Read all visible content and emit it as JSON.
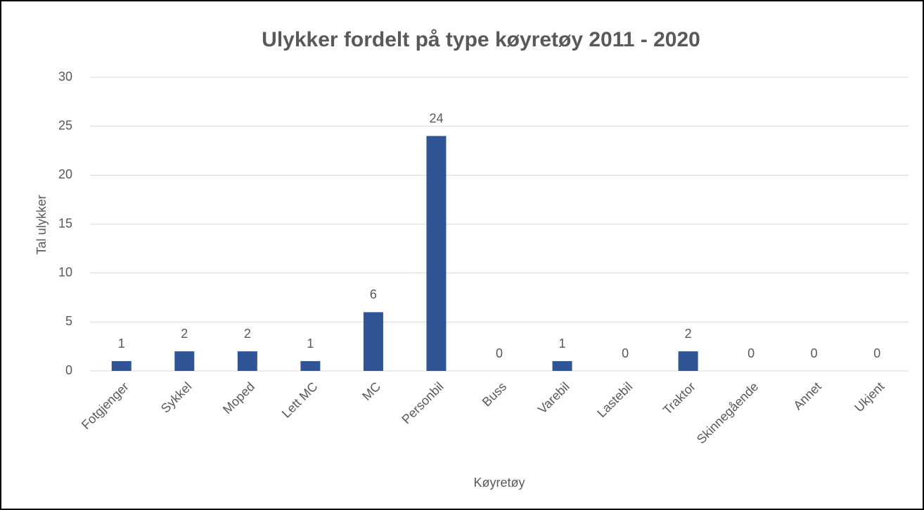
{
  "chart_data": {
    "type": "bar",
    "title": "Ulykker fordelt på type køyretøy  2011 - 2020",
    "x_label": "Køyretøy",
    "y_label": "Tal ulykker",
    "categories": [
      "Fotgjenger",
      "Sykkel",
      "Moped",
      "Lett MC",
      "MC",
      "Personbil",
      "Buss",
      "Varebil",
      "Lastebil",
      "Traktor",
      "Skinnegående",
      "Annet",
      "Ukjent"
    ],
    "values": [
      1,
      2,
      2,
      1,
      6,
      24,
      0,
      1,
      0,
      2,
      0,
      0,
      0
    ],
    "color": "#2f5597",
    "ylim": [
      0,
      30
    ],
    "yticks": [
      0,
      5,
      10,
      15,
      20,
      25,
      30
    ],
    "grid": true
  }
}
